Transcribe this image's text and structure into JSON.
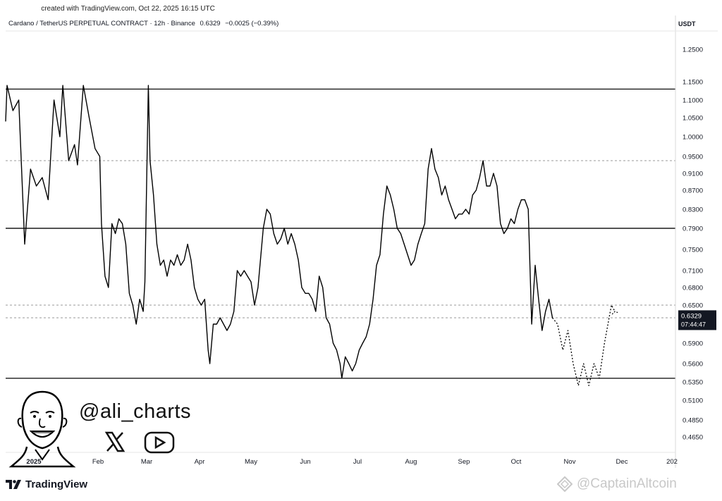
{
  "header": {
    "created_text": "created with TradingView.com, Oct 22, 2025 16:15 UTC",
    "pair_title": "Cardano / TetherUS PERPETUAL CONTRACT · 12h · Binance",
    "last_price": "0.6329",
    "change": "−0.0025 (−0.39%)",
    "currency": "USDT"
  },
  "branding": {
    "handle": "@ali_charts",
    "platform_logo_text": "TradingView",
    "watermark_text": "@CaptainAltcoin",
    "icons": [
      "avatar-caricature",
      "x-logo-icon",
      "youtube-play-icon"
    ]
  },
  "price_badge": {
    "price": "0.6329",
    "countdown": "07:44:47"
  },
  "chart_data": {
    "type": "line",
    "title": "Cardano / TetherUS PERPETUAL CONTRACT · 12h · Binance",
    "xlabel": "",
    "ylabel": "",
    "x_ticks": [
      "2025",
      "Feb",
      "Mar",
      "Apr",
      "May",
      "Jun",
      "Jul",
      "Aug",
      "Sep",
      "Oct",
      "Nov",
      "Dec",
      "202"
    ],
    "y_ticks": [
      "1.2500",
      "1.1500",
      "1.1000",
      "1.0500",
      "1.0000",
      "0.9500",
      "0.9100",
      "0.8700",
      "0.8300",
      "0.7900",
      "0.7500",
      "0.7100",
      "0.6800",
      "0.6500",
      "0.5900",
      "0.5600",
      "0.5350",
      "0.5100",
      "0.4850",
      "0.4650"
    ],
    "grid": false,
    "colors": {
      "line": "#000000",
      "level": "#1a1a1a",
      "dashed": "#9a9a9a",
      "badge": "#131722"
    },
    "horizontal_levels_solid": [
      1.13,
      0.79,
      0.54
    ],
    "horizontal_levels_dotted": [
      0.94,
      0.65,
      0.63
    ],
    "series": [
      {
        "style": "solid",
        "points": [
          [
            "2024-12-31",
            1.04
          ],
          [
            "2025-01-01",
            1.14
          ],
          [
            "2025-01-03",
            1.07
          ],
          [
            "2025-01-05",
            1.1
          ],
          [
            "2025-01-07",
            0.76
          ],
          [
            "2025-01-09",
            0.92
          ],
          [
            "2025-01-11",
            0.88
          ],
          [
            "2025-01-13",
            0.9
          ],
          [
            "2025-01-15",
            0.85
          ],
          [
            "2025-01-17",
            1.1
          ],
          [
            "2025-01-19",
            1.0
          ],
          [
            "2025-01-20",
            1.14
          ],
          [
            "2025-01-22",
            0.94
          ],
          [
            "2025-01-24",
            0.98
          ],
          [
            "2025-01-25",
            0.93
          ],
          [
            "2025-01-27",
            1.14
          ],
          [
            "2025-01-29",
            1.05
          ],
          [
            "2025-01-31",
            0.97
          ],
          [
            "2025-02-02",
            0.95
          ],
          [
            "2025-02-03",
            0.8
          ],
          [
            "2025-02-05",
            0.7
          ],
          [
            "2025-02-07",
            0.68
          ],
          [
            "2025-02-09",
            0.8
          ],
          [
            "2025-02-11",
            0.78
          ],
          [
            "2025-02-13",
            0.81
          ],
          [
            "2025-02-15",
            0.8
          ],
          [
            "2025-02-17",
            0.76
          ],
          [
            "2025-02-19",
            0.67
          ],
          [
            "2025-02-21",
            0.65
          ],
          [
            "2025-02-23",
            0.62
          ],
          [
            "2025-02-25",
            0.66
          ],
          [
            "2025-02-27",
            0.64
          ],
          [
            "2025-02-28",
            0.69
          ],
          [
            "2025-03-02",
            1.14
          ],
          [
            "2025-03-03",
            0.94
          ],
          [
            "2025-03-05",
            0.86
          ],
          [
            "2025-03-07",
            0.76
          ],
          [
            "2025-03-09",
            0.72
          ],
          [
            "2025-03-11",
            0.73
          ],
          [
            "2025-03-13",
            0.7
          ],
          [
            "2025-03-15",
            0.73
          ],
          [
            "2025-03-17",
            0.72
          ],
          [
            "2025-03-19",
            0.74
          ],
          [
            "2025-03-21",
            0.72
          ],
          [
            "2025-03-23",
            0.73
          ],
          [
            "2025-03-25",
            0.76
          ],
          [
            "2025-03-27",
            0.73
          ],
          [
            "2025-03-29",
            0.68
          ],
          [
            "2025-03-31",
            0.66
          ],
          [
            "2025-04-02",
            0.65
          ],
          [
            "2025-04-04",
            0.66
          ],
          [
            "2025-04-06",
            0.58
          ],
          [
            "2025-04-07",
            0.56
          ],
          [
            "2025-04-09",
            0.62
          ],
          [
            "2025-04-11",
            0.62
          ],
          [
            "2025-04-13",
            0.63
          ],
          [
            "2025-04-15",
            0.62
          ],
          [
            "2025-04-17",
            0.61
          ],
          [
            "2025-04-19",
            0.62
          ],
          [
            "2025-04-21",
            0.64
          ],
          [
            "2025-04-23",
            0.71
          ],
          [
            "2025-04-25",
            0.7
          ],
          [
            "2025-04-27",
            0.71
          ],
          [
            "2025-04-29",
            0.7
          ],
          [
            "2025-05-01",
            0.69
          ],
          [
            "2025-05-03",
            0.65
          ],
          [
            "2025-05-05",
            0.68
          ],
          [
            "2025-05-08",
            0.79
          ],
          [
            "2025-05-10",
            0.83
          ],
          [
            "2025-05-12",
            0.82
          ],
          [
            "2025-05-14",
            0.78
          ],
          [
            "2025-05-16",
            0.76
          ],
          [
            "2025-05-18",
            0.77
          ],
          [
            "2025-05-20",
            0.79
          ],
          [
            "2025-05-22",
            0.76
          ],
          [
            "2025-05-24",
            0.78
          ],
          [
            "2025-05-26",
            0.76
          ],
          [
            "2025-05-28",
            0.73
          ],
          [
            "2025-05-30",
            0.68
          ],
          [
            "2025-06-01",
            0.67
          ],
          [
            "2025-06-03",
            0.67
          ],
          [
            "2025-06-05",
            0.66
          ],
          [
            "2025-06-07",
            0.64
          ],
          [
            "2025-06-09",
            0.7
          ],
          [
            "2025-06-11",
            0.68
          ],
          [
            "2025-06-13",
            0.63
          ],
          [
            "2025-06-15",
            0.62
          ],
          [
            "2025-06-17",
            0.59
          ],
          [
            "2025-06-19",
            0.58
          ],
          [
            "2025-06-21",
            0.56
          ],
          [
            "2025-06-22",
            0.54
          ],
          [
            "2025-06-24",
            0.57
          ],
          [
            "2025-06-26",
            0.56
          ],
          [
            "2025-06-28",
            0.55
          ],
          [
            "2025-06-30",
            0.56
          ],
          [
            "2025-07-02",
            0.58
          ],
          [
            "2025-07-04",
            0.59
          ],
          [
            "2025-07-06",
            0.6
          ],
          [
            "2025-07-08",
            0.62
          ],
          [
            "2025-07-10",
            0.66
          ],
          [
            "2025-07-12",
            0.72
          ],
          [
            "2025-07-14",
            0.74
          ],
          [
            "2025-07-16",
            0.82
          ],
          [
            "2025-07-18",
            0.88
          ],
          [
            "2025-07-20",
            0.86
          ],
          [
            "2025-07-22",
            0.83
          ],
          [
            "2025-07-24",
            0.79
          ],
          [
            "2025-07-26",
            0.78
          ],
          [
            "2025-07-28",
            0.76
          ],
          [
            "2025-07-30",
            0.74
          ],
          [
            "2025-08-01",
            0.72
          ],
          [
            "2025-08-03",
            0.73
          ],
          [
            "2025-08-05",
            0.76
          ],
          [
            "2025-08-07",
            0.78
          ],
          [
            "2025-08-09",
            0.8
          ],
          [
            "2025-08-11",
            0.92
          ],
          [
            "2025-08-13",
            0.97
          ],
          [
            "2025-08-15",
            0.92
          ],
          [
            "2025-08-17",
            0.9
          ],
          [
            "2025-08-19",
            0.86
          ],
          [
            "2025-08-21",
            0.88
          ],
          [
            "2025-08-23",
            0.85
          ],
          [
            "2025-08-25",
            0.83
          ],
          [
            "2025-08-27",
            0.81
          ],
          [
            "2025-08-29",
            0.82
          ],
          [
            "2025-08-31",
            0.82
          ],
          [
            "2025-09-02",
            0.83
          ],
          [
            "2025-09-04",
            0.82
          ],
          [
            "2025-09-06",
            0.86
          ],
          [
            "2025-09-08",
            0.87
          ],
          [
            "2025-09-10",
            0.9
          ],
          [
            "2025-09-12",
            0.94
          ],
          [
            "2025-09-14",
            0.88
          ],
          [
            "2025-09-16",
            0.88
          ],
          [
            "2025-09-18",
            0.91
          ],
          [
            "2025-09-20",
            0.88
          ],
          [
            "2025-09-22",
            0.8
          ],
          [
            "2025-09-24",
            0.78
          ],
          [
            "2025-09-26",
            0.79
          ],
          [
            "2025-09-28",
            0.81
          ],
          [
            "2025-09-30",
            0.8
          ],
          [
            "2025-10-02",
            0.83
          ],
          [
            "2025-10-04",
            0.85
          ],
          [
            "2025-10-06",
            0.85
          ],
          [
            "2025-10-08",
            0.83
          ],
          [
            "2025-10-10",
            0.62
          ],
          [
            "2025-10-12",
            0.72
          ],
          [
            "2025-10-14",
            0.66
          ],
          [
            "2025-10-16",
            0.61
          ],
          [
            "2025-10-18",
            0.64
          ],
          [
            "2025-10-20",
            0.66
          ],
          [
            "2025-10-22",
            0.63
          ]
        ]
      },
      {
        "style": "dotted",
        "points": [
          [
            "2025-10-22",
            0.63
          ],
          [
            "2025-10-25",
            0.62
          ],
          [
            "2025-10-28",
            0.58
          ],
          [
            "2025-10-31",
            0.61
          ],
          [
            "2025-11-03",
            0.56
          ],
          [
            "2025-11-06",
            0.53
          ],
          [
            "2025-11-09",
            0.56
          ],
          [
            "2025-11-12",
            0.53
          ],
          [
            "2025-11-15",
            0.56
          ],
          [
            "2025-11-18",
            0.54
          ],
          [
            "2025-11-21",
            0.59
          ],
          [
            "2025-11-25",
            0.65
          ],
          [
            "2025-11-27",
            0.64
          ]
        ]
      }
    ]
  }
}
